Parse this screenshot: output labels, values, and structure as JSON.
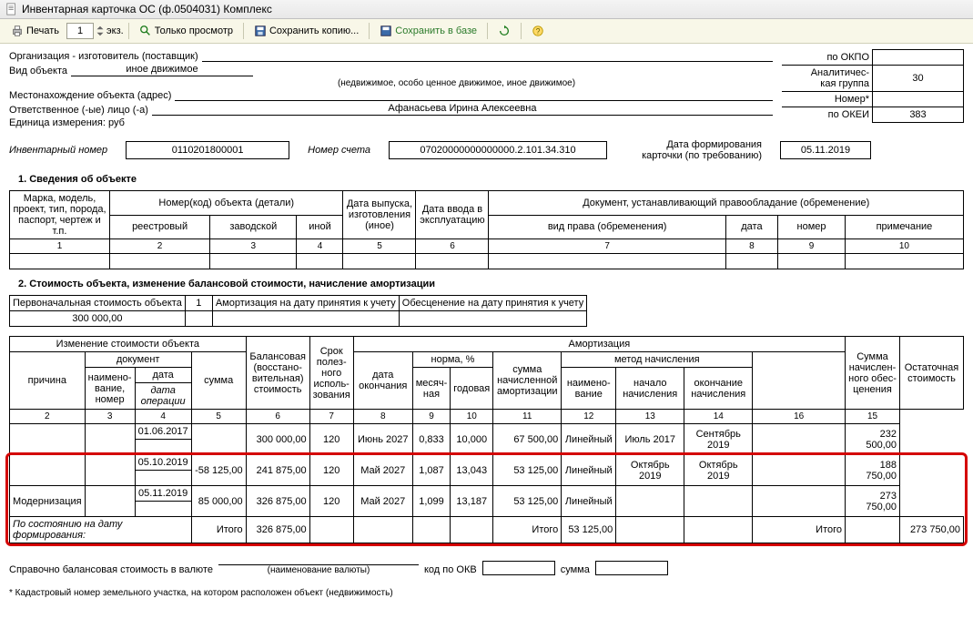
{
  "window": {
    "title": "Инвентарная карточка ОС (ф.0504031) Комплекс"
  },
  "toolbar": {
    "print": "Печать",
    "copies_value": "1",
    "copies_suffix": "экз.",
    "preview": "Только просмотр",
    "save_copy": "Сохранить копию...",
    "save_db": "Сохранить в базе"
  },
  "header": {
    "manufacturer_label": "Организация - изготовитель (поставщик)",
    "okpo_label": "по ОКПО",
    "okpo_value": "",
    "object_type_label": "Вид объекта",
    "object_type_value": "иное движимое",
    "object_type_hint": "(недвижимое, особо ценное движимое, иное движимое)",
    "analytic_label": "Аналитичес-\nкая группа",
    "analytic_value": "30",
    "location_label": "Местонахождение объекта (адрес)",
    "number_label": "Номер*",
    "number_value": "",
    "responsible_label": "Ответственное (-ые) лицо (-а)",
    "responsible_value": "Афанасьева Ирина Алексеевна",
    "unit_label": "Единица измерения: руб",
    "okei_label": "по ОКЕИ",
    "okei_value": "383",
    "inv_num_label": "Инвентарный номер",
    "inv_num_value": "0110201800001",
    "account_label": "Номер счета",
    "account_value": "07020000000000000.2.101.34.310",
    "card_date_label": "Дата формирования карточки (по требованию)",
    "card_date_value": "05.11.2019"
  },
  "section1": {
    "title": "1. Сведения об объекте",
    "cols": {
      "c1": "Марка, модель, проект, тип, порода, паспорт, чертеж и т.п.",
      "c2_group": "Номер(код) объекта (детали)",
      "c2a": "реестровый",
      "c2b": "заводской",
      "c2c": "иной",
      "c5": "Дата выпуска, изготовления (иное)",
      "c6": "Дата ввода в эксплуатацию",
      "c7_group": "Документ, устанавливающий правообладание (обременение)",
      "c7a": "вид права (обременения)",
      "c7b": "дата",
      "c7c": "номер",
      "c7d": "примечание"
    },
    "nums": [
      "1",
      "2",
      "3",
      "4",
      "5",
      "6",
      "7",
      "8",
      "9",
      "10"
    ]
  },
  "section2": {
    "title": "2. Стоимость объекта, изменение балансовой стоимости, начисление амортизации",
    "top": {
      "init_cost_label": "Первоначальная стоимость объекта",
      "init_cost_value": "300 000,00",
      "one": "1",
      "amort_label": "Амортизация на дату принятия к учету",
      "amort_value": "",
      "impair_label": "Обесценение на дату принятия к учету",
      "impair_value": ""
    },
    "cols": {
      "chg_group": "Изменение стоимости объекта",
      "reason": "причина",
      "doc_group": "документ",
      "doc_name": "наимено-\nвание, номер",
      "doc_date": "дата",
      "doc_date_sub": "дата операции",
      "sum": "сумма",
      "bal_cost": "Балансовая (восстано-\nвительная) стоимость",
      "useful": "Срок полез-\nного исполь-\nзования",
      "amort_group": "Амортизация",
      "end_date": "дата окончания",
      "rate_group": "норма, %",
      "rate_m": "месяч-\nная",
      "rate_y": "годовая",
      "accrued": "сумма начисленной амортизации",
      "method_group": "метод начисления",
      "method_name": "наимено-\nвание",
      "method_start": "начало начисления",
      "method_end": "окончание начисления",
      "impair": "Сумма начислен-\nного обес-\nценения",
      "residual": "Остаточная стоимость"
    },
    "nums": [
      "2",
      "3",
      "4",
      "5",
      "6",
      "7",
      "8",
      "9",
      "10",
      "11",
      "12",
      "13",
      "14",
      "16",
      "15"
    ],
    "rows": [
      {
        "reason": "",
        "doc_name": "",
        "doc_date": "01.06.2017",
        "sum": "",
        "bal": "300 000,00",
        "useful": "120",
        "end": "Июнь 2027",
        "rm": "0,833",
        "ry": "10,000",
        "accr": "67 500,00",
        "m": "Линейный",
        "ms": "Июль 2017",
        "me": "Сентябрь 2019",
        "imp": "",
        "res": "232 500,00"
      },
      {
        "reason": "",
        "doc_name": "",
        "doc_date": "05.10.2019",
        "sum": "-58 125,00",
        "bal": "241 875,00",
        "useful": "120",
        "end": "Май 2027",
        "rm": "1,087",
        "ry": "13,043",
        "accr": "53 125,00",
        "m": "Линейный",
        "ms": "Октябрь 2019",
        "me": "Октябрь 2019",
        "imp": "",
        "res": "188 750,00"
      },
      {
        "reason": "Модернизация",
        "doc_name": "",
        "doc_date": "05.11.2019",
        "sum": "85 000,00",
        "bal": "326 875,00",
        "useful": "120",
        "end": "Май 2027",
        "rm": "1,099",
        "ry": "13,187",
        "accr": "53 125,00",
        "m": "Линейный",
        "ms": "",
        "me": "",
        "imp": "",
        "res": "273 750,00"
      }
    ],
    "total_row": {
      "label": "По состоянию на дату формирования:",
      "itogo": "Итого",
      "bal": "326 875,00",
      "accr": "53 125,00",
      "res": "273 750,00"
    }
  },
  "footer": {
    "currency_label": "Справочно балансовая стоимость в валюте",
    "currency_hint": "(наименование валюты)",
    "okv_label": "код по ОКВ",
    "sum_label": "сумма",
    "note": "* Кадастровый номер земельного участка, на котором расположен объект (недвижимость)"
  },
  "colors": {
    "toolbar_bg": "#f8f7e8",
    "border": "#000000",
    "highlight": "#d40000",
    "green_text": "#2a7a2a"
  }
}
